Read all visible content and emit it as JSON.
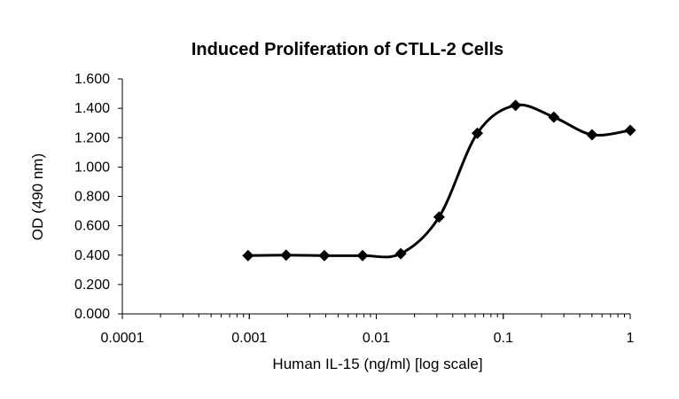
{
  "chart_data": {
    "type": "scatter",
    "title": "Induced Proliferation of CTLL-2 Cells",
    "xlabel": "Human IL-15 (ng/ml) [log scale]",
    "ylabel": "OD (490 nm)",
    "x_scale": "log",
    "xlim": [
      0.0001,
      1
    ],
    "ylim": [
      0,
      1.6
    ],
    "x_ticks": [
      "0.0001",
      "0.001",
      "0.01",
      "0.1",
      "1"
    ],
    "y_ticks": [
      "0.000",
      "0.200",
      "0.400",
      "0.600",
      "0.800",
      "1.000",
      "1.200",
      "1.400",
      "1.600"
    ],
    "grid": false,
    "legend": "none",
    "smoothed_line": true,
    "marker": "diamond",
    "series": [
      {
        "x": [
          0.000977,
          0.00195,
          0.0039,
          0.0078,
          0.0156,
          0.03125,
          0.0625,
          0.125,
          0.25,
          0.5,
          1
        ],
        "y": [
          0.397,
          0.4,
          0.397,
          0.397,
          0.41,
          0.66,
          1.23,
          1.42,
          1.34,
          1.22,
          1.25
        ]
      }
    ],
    "color": "#000000"
  }
}
